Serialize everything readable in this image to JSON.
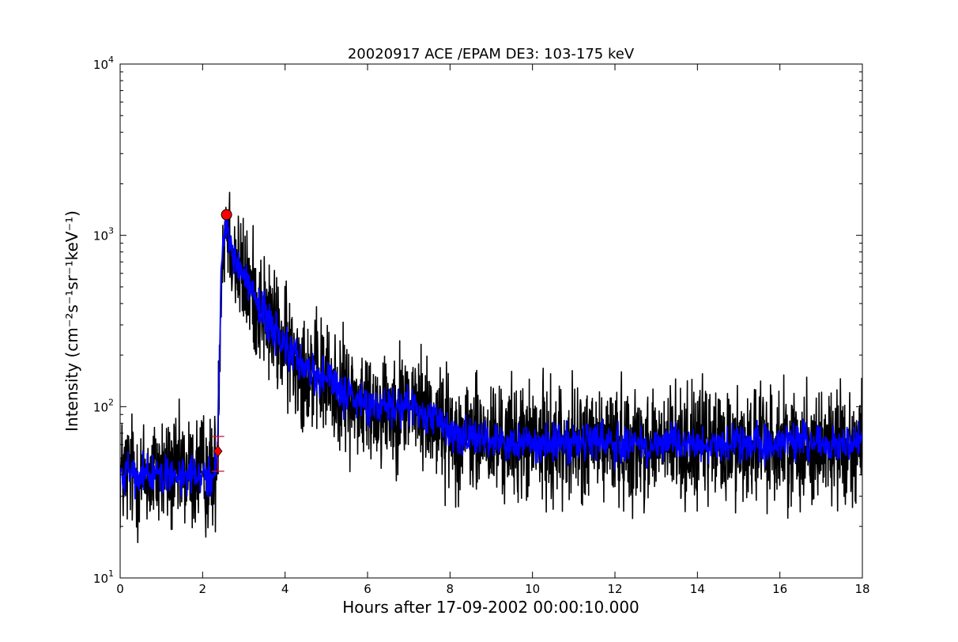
{
  "chart_data": {
    "type": "line",
    "title": "20020917 ACE /EPAM DE3: 103-175 keV",
    "xlabel": "Hours after 17-09-2002 00:00:10.000",
    "ylabel": "Intensity (cm⁻²s⁻¹sr⁻¹keV⁻¹)",
    "xlim": [
      0,
      18
    ],
    "ylim": [
      10,
      10000
    ],
    "yscale": "log",
    "grid": false,
    "x_ticks": [
      0,
      2,
      4,
      6,
      8,
      10,
      12,
      14,
      16,
      18
    ],
    "x_tick_labels": [
      "0",
      "2",
      "4",
      "6",
      "8",
      "10",
      "12",
      "14",
      "16",
      "18"
    ],
    "y_tick_labels": [
      {
        "base": "10",
        "exp": "1",
        "value": 10
      },
      {
        "base": "10",
        "exp": "2",
        "value": 100
      },
      {
        "base": "10",
        "exp": "3",
        "value": 1000
      },
      {
        "base": "10",
        "exp": "4",
        "value": 10000
      }
    ],
    "series": [
      {
        "color": "#000000",
        "style": "raw noisy intensity",
        "x": [
          0.0,
          0.25,
          0.5,
          0.75,
          1.0,
          1.25,
          1.5,
          1.75,
          2.0,
          2.2,
          2.35,
          2.45,
          2.52,
          2.58,
          2.65,
          2.8,
          3.0,
          3.3,
          3.6,
          4.0,
          4.5,
          5.0,
          5.5,
          6.0,
          6.5,
          7.0,
          7.5,
          7.9,
          8.2,
          9.0,
          10.0,
          11.0,
          12.0,
          13.0,
          14.0,
          15.0,
          16.0,
          17.0,
          18.0
        ],
        "y": [
          40,
          42,
          38,
          40,
          42,
          39,
          41,
          40,
          42,
          38,
          45,
          600,
          1000,
          1200,
          1000,
          700,
          550,
          430,
          320,
          220,
          170,
          140,
          115,
          100,
          100,
          105,
          90,
          75,
          68,
          63,
          62,
          61,
          61,
          60,
          60,
          60,
          60,
          60,
          60
        ],
        "noise_sigma": 0.17
      },
      {
        "color": "#0000ff",
        "style": "smoothed intensity",
        "x": [
          0.0,
          0.25,
          0.5,
          0.75,
          1.0,
          1.25,
          1.5,
          1.75,
          2.0,
          2.2,
          2.35,
          2.45,
          2.52,
          2.58,
          2.65,
          2.8,
          3.0,
          3.3,
          3.6,
          4.0,
          4.5,
          5.0,
          5.5,
          6.0,
          6.5,
          7.0,
          7.5,
          7.9,
          8.2,
          9.0,
          10.0,
          11.0,
          12.0,
          13.0,
          14.0,
          15.0,
          16.0,
          17.0,
          18.0
        ],
        "y": [
          40,
          42,
          38,
          40,
          42,
          39,
          41,
          40,
          42,
          38,
          45,
          600,
          1000,
          1200,
          1000,
          700,
          550,
          430,
          320,
          220,
          170,
          140,
          115,
          100,
          100,
          105,
          90,
          75,
          68,
          63,
          62,
          61,
          61,
          60,
          60,
          60,
          60,
          60,
          60
        ],
        "noise_sigma": 0.055
      }
    ],
    "markers": [
      {
        "type": "diamond",
        "x": 2.37,
        "y": 55,
        "color": "#ff0000",
        "error_low": 42,
        "error_high": 67
      },
      {
        "type": "circle",
        "x": 2.58,
        "y": 1320,
        "color": "#ff0000"
      }
    ]
  }
}
